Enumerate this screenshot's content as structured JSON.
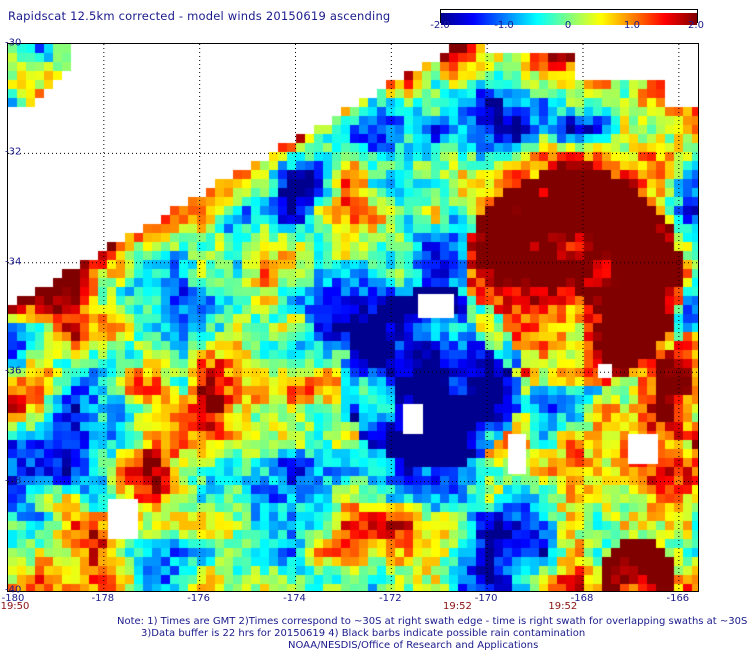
{
  "title": "Rapidscat 12.5km corrected - model winds 20150619 ascending",
  "colorbar": {
    "ticks": [
      "-2.0",
      "-1.0",
      "0",
      "1.0",
      "2.0"
    ],
    "tick_values": [
      -2.0,
      -1.0,
      0,
      1.0,
      2.0
    ],
    "range": [
      -2.0,
      2.0
    ],
    "colors": [
      "#00008f",
      "#0000ff",
      "#0080ff",
      "#00ffff",
      "#80ff80",
      "#ffff00",
      "#ff8000",
      "#ff0000",
      "#800000"
    ]
  },
  "map": {
    "lat_labels": [
      "-30",
      "-32",
      "-34",
      "-36",
      "-38",
      "-40"
    ],
    "lat_values": [
      -30,
      -32,
      -34,
      -36,
      -38,
      -40
    ],
    "lon_labels": [
      "-180",
      "-178",
      "-176",
      "-174",
      "-172",
      "-170",
      "-168",
      "-166"
    ],
    "lon_values": [
      -180,
      -178,
      -176,
      -174,
      -172,
      -170,
      -168,
      -166
    ],
    "lat_range": [
      -40,
      -30
    ],
    "lon_range": [
      -180,
      -165.6
    ],
    "time_labels": [
      {
        "text": "19:50",
        "lon": -180
      },
      {
        "text": "19:52",
        "lon": -170.6
      },
      {
        "text": "19:52",
        "lon": -168.4
      }
    ]
  },
  "notes": {
    "line1": "Note: 1) Times are GMT 2)Times correspond to ~30S at right swath edge - time is right swath for overlapping swaths at ~30S",
    "line2": "3)Data buffer is 22 hrs for 20150619 4) Black barbs indicate possible rain contamination",
    "line3": "NOAA/NESDIS/Office of Research and Applications"
  }
}
